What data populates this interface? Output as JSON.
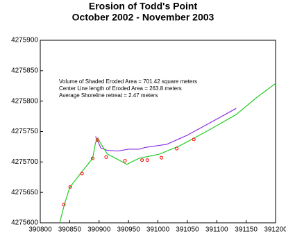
{
  "chart_data": {
    "type": "line",
    "title": "Erosion of Todd's Point",
    "subtitle": "October 2002 - November 2003",
    "annotations": [
      "Volume of Shaded Eroded Area = 701.42 square meters",
      "Center Line length of Eroded Area = 263.8 meters",
      "Average Shoreline retreat = 2.47 meters"
    ],
    "xlim": [
      390800,
      391200
    ],
    "xticks": [
      390800,
      390850,
      390900,
      390950,
      391000,
      391050,
      391100,
      391150,
      391200
    ],
    "ylim": [
      4275600,
      4275900
    ],
    "yticks": [
      4275600,
      4275650,
      4275700,
      4275750,
      4275800,
      4275850,
      4275900
    ],
    "series": [
      {
        "color": "#8a2be2",
        "mode": "line",
        "x": [
          390894,
          390903,
          390914,
          390932,
          390950,
          390968,
          390979,
          391015,
          391050,
          391086,
          391133
        ],
        "values": [
          4275742,
          4275723,
          4275719,
          4275718,
          4275721,
          4275721,
          4275724,
          4275729,
          4275744,
          4275763,
          4275788
        ]
      },
      {
        "color": "#22cc22",
        "mode": "line",
        "x": [
          390833,
          390841,
          390850,
          390870,
          390889,
          390894,
          390898,
          390905,
          390914,
          390932,
          390947,
          390968,
          391003,
          391038,
          391086,
          391133,
          391168,
          391200
        ],
        "values": [
          4275600,
          4275630,
          4275658,
          4275683,
          4275706,
          4275732,
          4275739,
          4275727,
          4275713,
          4275704,
          4275696,
          4275706,
          4275713,
          4275727,
          4275752,
          4275778,
          4275806,
          4275829
        ]
      },
      {
        "color": "#ff0000",
        "mode": "markers",
        "x": [
          390840,
          390851,
          390871,
          390889,
          390897,
          390912,
          390944,
          390973,
          390982,
          391006,
          391032,
          391061
        ],
        "values": [
          4275630,
          4275659,
          4275681,
          4275706,
          4275736,
          4275708,
          4275702,
          4275703,
          4275703,
          4275707,
          4275722,
          4275737
        ]
      }
    ]
  }
}
